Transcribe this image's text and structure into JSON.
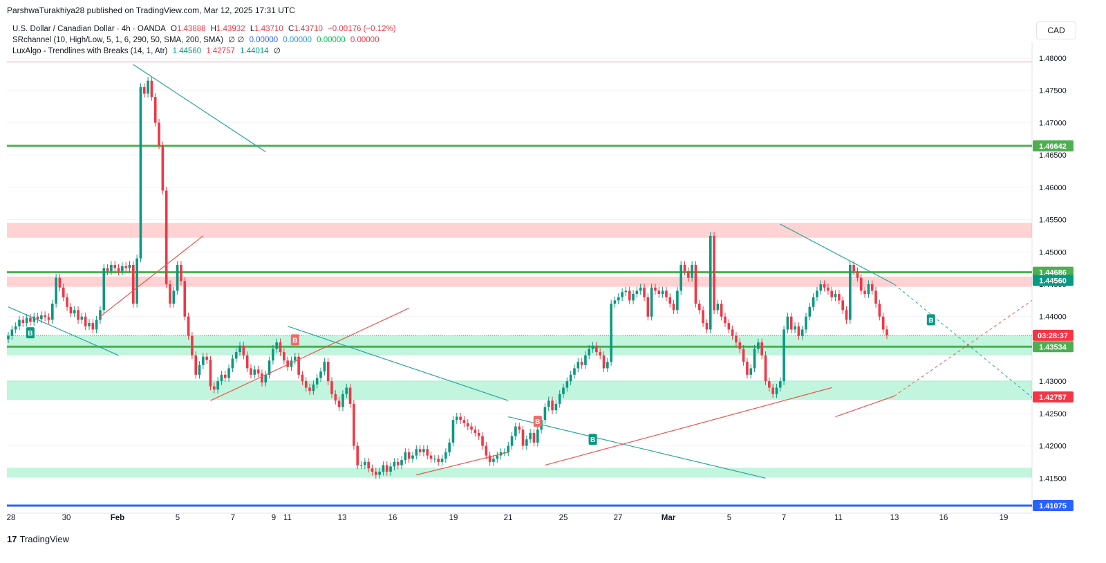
{
  "header": {
    "publisher": "ParshwaTurakhiya28 published on TradingView.com, Mar 12, 2025 17:31 UTC"
  },
  "legend": {
    "symbol": "U.S. Dollar / Canadian Dollar · 4h · OANDA",
    "o_label": "O",
    "o": "1.43888",
    "h_label": "H",
    "h": "1.43932",
    "l_label": "L",
    "l": "1.43710",
    "c_label": "C",
    "c": "1.43710",
    "change": "−0.00176 (−0.12%)",
    "sr_name": "SRchannel (10, High/Low, 5, 1, 6, 290, 50, SMA, 200, SMA)",
    "sr_sym": "∅ ∅",
    "sr_v1": "0.00000",
    "sr_v2": "0.00000",
    "sr_v3": "0.00000",
    "sr_v4": "0.00000",
    "lux_name": "LuxAlgo - Trendlines with Breaks (14, 1, Atr)",
    "lux_v1": "1.44560",
    "lux_v2": "1.42757",
    "lux_v3": "1.44014",
    "lux_sym": "∅"
  },
  "currency": "CAD",
  "footer": {
    "brand": "TradingView",
    "mark": "17"
  },
  "colors": {
    "up": "#089981",
    "down": "#f23645",
    "sr_green": "#4caf50",
    "support_zone": "rgba(8,217,120,0.25)",
    "resistance_zone": "rgba(255,80,80,0.25)",
    "blue": "#2962ff",
    "trend_teal": "#26a69a",
    "trend_red": "#f05350"
  },
  "chart_data": {
    "type": "candlestick",
    "ylim": [
      1.41,
      1.4815
    ],
    "y_ticks": [
      "1.48000",
      "1.47500",
      "1.47000",
      "1.46500",
      "1.46000",
      "1.45500",
      "1.45000",
      "1.44500",
      "1.44000",
      "1.43500",
      "1.43000",
      "1.42500",
      "1.42000",
      "1.41500"
    ],
    "x_ticks": [
      "28",
      "30",
      "Feb",
      "5",
      "7",
      "9",
      "11",
      "13",
      "16",
      "19",
      "21",
      "25",
      "27",
      "Mar",
      "5",
      "7",
      "11",
      "13",
      "16",
      "19"
    ],
    "price_labels": [
      {
        "text": "1.46642",
        "value": 1.46642,
        "kind": "green"
      },
      {
        "text": "1.44686",
        "value": 1.44686,
        "kind": "green"
      },
      {
        "text": "1.44560",
        "value": 1.4456,
        "kind": "teal"
      },
      {
        "text": "03:28:37",
        "value": 1.4371,
        "kind": "red"
      },
      {
        "text": "1.43534",
        "value": 1.43534,
        "kind": "green"
      },
      {
        "text": "1.42757",
        "value": 1.42757,
        "kind": "red"
      },
      {
        "text": "1.41075",
        "value": 1.41075,
        "kind": "blue"
      }
    ],
    "sr_lines": [
      1.46642,
      1.44686,
      1.43534
    ],
    "blue_line": 1.41075,
    "zones": [
      {
        "kind": "resistance",
        "top": 1.4545,
        "bottom": 1.4522
      },
      {
        "kind": "resistance",
        "top": 1.4462,
        "bottom": 1.4446
      },
      {
        "kind": "support",
        "top": 1.4371,
        "bottom": 1.434
      },
      {
        "kind": "support",
        "top": 1.4301,
        "bottom": 1.4271
      },
      {
        "kind": "support",
        "top": 1.4166,
        "bottom": 1.4151
      }
    ],
    "dotted_price": 1.4371,
    "closes": [
      1.437,
      1.438,
      1.4385,
      1.4395,
      1.439,
      1.4398,
      1.4392,
      1.44,
      1.4396,
      1.4402,
      1.4399,
      1.4395,
      1.442,
      1.446,
      1.4445,
      1.443,
      1.4415,
      1.4405,
      1.441,
      1.4395,
      1.44,
      1.4385,
      1.439,
      1.438,
      1.4395,
      1.441,
      1.4475,
      1.447,
      1.448,
      1.4475,
      1.447,
      1.4478,
      1.4475,
      1.448,
      1.442,
      1.449,
      1.4755,
      1.4745,
      1.4765,
      1.474,
      1.47,
      1.4665,
      1.4595,
      1.445,
      1.442,
      1.444,
      1.448,
      1.4455,
      1.44,
      1.437,
      1.434,
      1.431,
      1.4325,
      1.4338,
      1.4333,
      1.4292,
      1.4287,
      1.43,
      1.431,
      1.4305,
      1.432,
      1.4335,
      1.4345,
      1.4355,
      1.434,
      1.432,
      1.431,
      1.4318,
      1.4312,
      1.4298,
      1.431,
      1.4332,
      1.435,
      1.436,
      1.4345,
      1.4332,
      1.4322,
      1.4332,
      1.4338,
      1.431,
      1.43,
      1.429,
      1.4285,
      1.4295,
      1.4305,
      1.4315,
      1.433,
      1.43,
      1.428,
      1.427,
      1.426,
      1.428,
      1.429,
      1.4265,
      1.42,
      1.417,
      1.417,
      1.4175,
      1.4165,
      1.416,
      1.4155,
      1.416,
      1.417,
      1.416,
      1.4168,
      1.4175,
      1.417,
      1.4178,
      1.419,
      1.418,
      1.4185,
      1.4195,
      1.419,
      1.4195,
      1.4185,
      1.418,
      1.418,
      1.4175,
      1.418,
      1.419,
      1.4205,
      1.424,
      1.4245,
      1.424,
      1.4235,
      1.423,
      1.4225,
      1.422,
      1.4215,
      1.42,
      1.4185,
      1.4175,
      1.418,
      1.4185,
      1.419,
      1.419,
      1.42,
      1.4215,
      1.423,
      1.4225,
      1.42,
      1.421,
      1.422,
      1.4205,
      1.4225,
      1.424,
      1.426,
      1.427,
      1.4255,
      1.4265,
      1.428,
      1.429,
      1.43,
      1.431,
      1.432,
      1.433,
      1.4325,
      1.434,
      1.435,
      1.4355,
      1.4345,
      1.434,
      1.432,
      1.433,
      1.442,
      1.4425,
      1.443,
      1.4438,
      1.444,
      1.4425,
      1.4435,
      1.444,
      1.4445,
      1.443,
      1.44,
      1.4445,
      1.444,
      1.4435,
      1.444,
      1.443,
      1.442,
      1.441,
      1.444,
      1.448,
      1.447,
      1.446,
      1.448,
      1.442,
      1.441,
      1.439,
      1.438,
      1.4525,
      1.441,
      1.442,
      1.44,
      1.439,
      1.438,
      1.437,
      1.436,
      1.435,
      1.433,
      1.431,
      1.432,
      1.435,
      1.436,
      1.434,
      1.43,
      1.429,
      1.428,
      1.429,
      1.43,
      1.438,
      1.44,
      1.438,
      1.4385,
      1.437,
      1.438,
      1.44,
      1.4415,
      1.443,
      1.444,
      1.445,
      1.4445,
      1.444,
      1.443,
      1.4435,
      1.4425,
      1.441,
      1.4395,
      1.448,
      1.447,
      1.446,
      1.444,
      1.4435,
      1.445,
      1.444,
      1.442,
      1.44,
      1.438,
      1.4371
    ],
    "trendlines": [
      {
        "color": "teal",
        "x1": 0,
        "y1": 1.4415,
        "x2": 30,
        "y2": 1.434
      },
      {
        "color": "teal",
        "x1": 34,
        "y1": 1.479,
        "x2": 70,
        "y2": 1.4655
      },
      {
        "color": "red",
        "x1": 25,
        "y1": 1.44,
        "x2": 53,
        "y2": 1.4525
      },
      {
        "color": "teal",
        "x1": 76,
        "y1": 1.4385,
        "x2": 136,
        "y2": 1.427
      },
      {
        "color": "red",
        "x1": 55,
        "y1": 1.427,
        "x2": 109,
        "y2": 1.4413
      },
      {
        "color": "teal",
        "x1": 136,
        "y1": 1.4245,
        "x2": 206,
        "y2": 1.415
      },
      {
        "color": "red",
        "x1": 111,
        "y1": 1.4155,
        "x2": 136,
        "y2": 1.419
      },
      {
        "color": "red",
        "x1": 146,
        "y1": 1.417,
        "x2": 224,
        "y2": 1.429
      },
      {
        "color": "teal",
        "x1": 210,
        "y1": 1.4543,
        "x2": 241,
        "y2": 1.445
      },
      {
        "color": "red",
        "x1": 225,
        "y1": 1.4245,
        "x2": 241,
        "y2": 1.4277
      }
    ],
    "signals": [
      {
        "text": "B",
        "kind": "buy",
        "x": 6,
        "value": 1.4375
      },
      {
        "text": "B",
        "kind": "sell",
        "x": 78,
        "value": 1.4364
      },
      {
        "text": "B",
        "kind": "sell",
        "x": 144,
        "value": 1.4238
      },
      {
        "text": "B",
        "kind": "buy",
        "x": 159,
        "value": 1.421
      },
      {
        "text": "B",
        "kind": "buy",
        "x": 251,
        "value": 1.4395
      }
    ]
  }
}
